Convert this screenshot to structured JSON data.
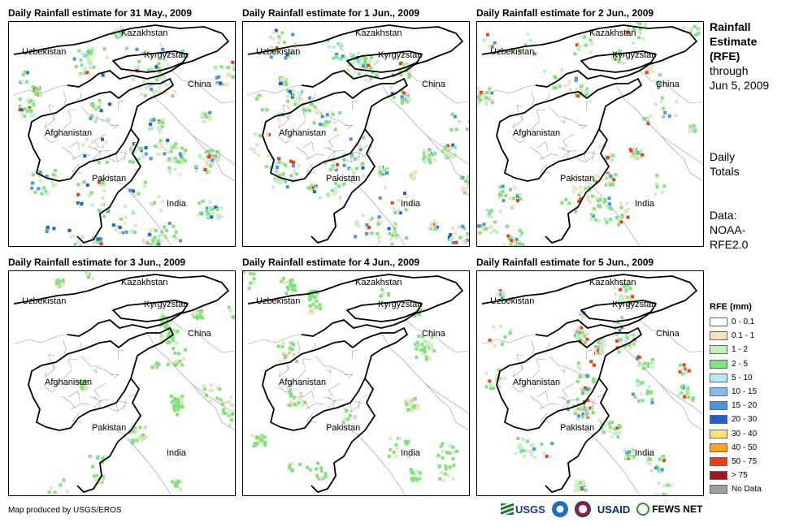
{
  "panels": [
    {
      "title": "Daily Rainfall estimate for 31 May., 2009",
      "wet": 3
    },
    {
      "title": "Daily Rainfall estimate for 1 Jun., 2009",
      "wet": 3
    },
    {
      "title": "Daily Rainfall estimate for 2 Jun., 2009",
      "wet": 2
    },
    {
      "title": "Daily Rainfall estimate for 3 Jun., 2009",
      "wet": 1
    },
    {
      "title": "Daily Rainfall estimate for 4 Jun., 2009",
      "wet": 1
    },
    {
      "title": "Daily Rainfall estimate for 5 Jun., 2009",
      "wet": 2
    }
  ],
  "country_labels": {
    "kazakhstan": "Kazakhstan",
    "uzbekistan": "Uzbekistan",
    "kyrgyzstan": "Kyrgyzstan",
    "china": "China",
    "afghanistan": "Afghanistan",
    "pakistan": "Pakistan",
    "india": "India"
  },
  "side": {
    "title_1": "Rainfall",
    "title_2": "Estimate",
    "title_3": "(RFE)",
    "through": "through",
    "date": "Jun 5, 2009",
    "daily_1": "Daily",
    "daily_2": "Totals",
    "data_1": "Data:",
    "data_2": "NOAA-",
    "data_3": "RFE2.0"
  },
  "legend": {
    "title": "RFE (mm)",
    "items": [
      {
        "label": "0 - 0.1",
        "color": "#ffffff"
      },
      {
        "label": "0.1 - 1",
        "color": "#f3dfc1"
      },
      {
        "label": "1 - 2",
        "color": "#c4f3b8"
      },
      {
        "label": "2 - 5",
        "color": "#7fe57a"
      },
      {
        "label": "5 - 10",
        "color": "#b5ecf2"
      },
      {
        "label": "10 - 15",
        "color": "#82bdf0"
      },
      {
        "label": "15 - 20",
        "color": "#4a93e6"
      },
      {
        "label": "20 - 30",
        "color": "#1c5fd8"
      },
      {
        "label": "30 - 40",
        "color": "#fde27a"
      },
      {
        "label": "40 - 50",
        "color": "#fda41a"
      },
      {
        "label": "50 - 75",
        "color": "#f43d0e"
      },
      {
        "label": "> 75",
        "color": "#a2151c"
      },
      {
        "label": "No Data",
        "color": "#9e9e9e"
      }
    ]
  },
  "credit": "Map produced by USGS/EROS",
  "logos": {
    "usgs": "USGS",
    "usaid": "USAID",
    "fews": "FEWS NET"
  }
}
